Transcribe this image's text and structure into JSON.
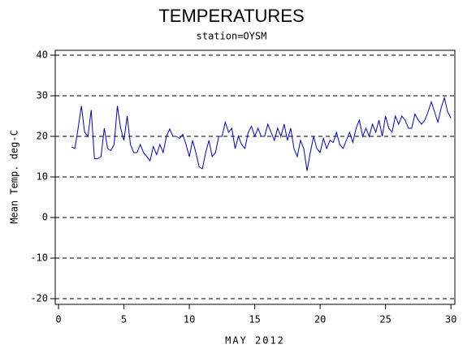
{
  "chart_data": {
    "type": "line",
    "title": "TEMPERATURES",
    "subtitle": "station=OYSM",
    "x_label": "MAY 2012",
    "y_label": "Mean Temp. deg-C",
    "x": [
      1.0,
      1.25,
      1.5,
      1.75,
      2.0,
      2.25,
      2.5,
      2.75,
      3.0,
      3.25,
      3.5,
      3.75,
      4.0,
      4.25,
      4.5,
      4.75,
      5.0,
      5.25,
      5.5,
      5.75,
      6.0,
      6.25,
      6.5,
      6.75,
      7.0,
      7.25,
      7.5,
      7.75,
      8.0,
      8.25,
      8.5,
      8.75,
      9.0,
      9.25,
      9.5,
      9.75,
      10.0,
      10.25,
      10.5,
      10.75,
      11.0,
      11.25,
      11.5,
      11.75,
      12.0,
      12.25,
      12.5,
      12.75,
      13.0,
      13.25,
      13.5,
      13.75,
      14.0,
      14.25,
      14.5,
      14.75,
      15.0,
      15.25,
      15.5,
      15.75,
      16.0,
      16.25,
      16.5,
      16.75,
      17.0,
      17.25,
      17.5,
      17.75,
      18.0,
      18.25,
      18.5,
      18.75,
      19.0,
      19.25,
      19.5,
      19.75,
      20.0,
      20.25,
      20.5,
      20.75,
      21.0,
      21.25,
      21.5,
      21.75,
      22.0,
      22.25,
      22.5,
      22.75,
      23.0,
      23.25,
      23.5,
      23.75,
      24.0,
      24.25,
      24.5,
      24.75,
      25.0,
      25.25,
      25.5,
      25.75,
      26.0,
      26.25,
      26.5,
      26.75,
      27.0,
      27.25,
      27.5,
      27.75,
      28.0,
      28.25,
      28.5,
      28.75,
      29.0,
      29.25,
      29.5,
      29.75,
      30.0
    ],
    "series": [
      {
        "name": "Mean Temp",
        "color": "#0000cc",
        "values": [
          17.4,
          17,
          22,
          27.5,
          21,
          20,
          26.5,
          14.5,
          14.5,
          15,
          22,
          17,
          16.5,
          18,
          27.5,
          22,
          19,
          25,
          18,
          16,
          16,
          18,
          16,
          15,
          14,
          17.5,
          15.5,
          18,
          16,
          20,
          21.8,
          20,
          20,
          19.5,
          20.5,
          18,
          15,
          19,
          16,
          12.5,
          12,
          16,
          19,
          15,
          16,
          20,
          20,
          23.5,
          21,
          22,
          17,
          20,
          18,
          17,
          21,
          22.5,
          20,
          22,
          20,
          20,
          23,
          21,
          19,
          22,
          20,
          23,
          19,
          22,
          17,
          15,
          19,
          17,
          11.5,
          16,
          20,
          17,
          16,
          19.5,
          17,
          19,
          18.5,
          21,
          18,
          17,
          19,
          21,
          18.5,
          22,
          24,
          20,
          22,
          20,
          23,
          21,
          24,
          20,
          25,
          22,
          21,
          25,
          23,
          25,
          24,
          22,
          22,
          25.5,
          24,
          23,
          24,
          26,
          28.5,
          26,
          23.5,
          27,
          29.5,
          26,
          24.5
        ]
      }
    ],
    "xlim": [
      -0.25,
      30.3
    ],
    "xticks": [
      0,
      5,
      10,
      15,
      20,
      25,
      30
    ],
    "ylim": [
      -21.4,
      41.2
    ],
    "yticks": [
      -20,
      -10,
      0,
      10,
      20,
      30,
      40
    ],
    "grid": true
  }
}
